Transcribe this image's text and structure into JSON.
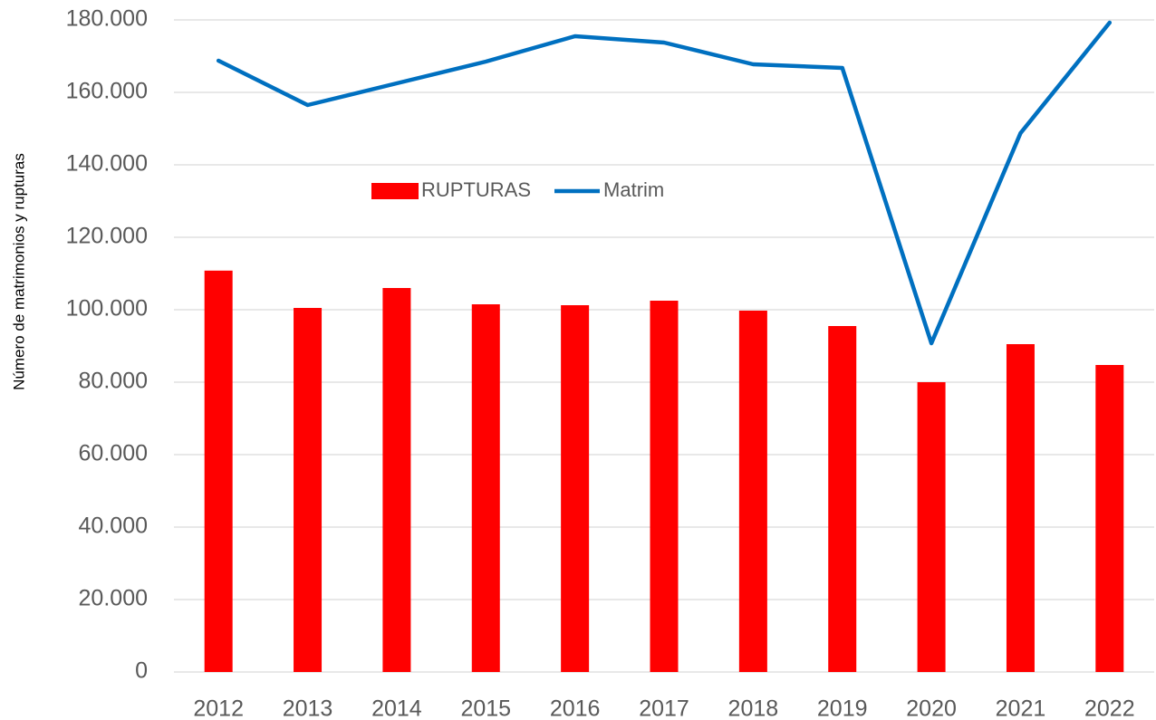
{
  "chart_data": {
    "type": "combo",
    "y_label": "Número de matrimonios y rupturas",
    "categories": [
      "2012",
      "2013",
      "2014",
      "2015",
      "2016",
      "2017",
      "2018",
      "2019",
      "2020",
      "2021",
      "2022"
    ],
    "series": [
      {
        "name": "RUPTURAS",
        "type": "bar",
        "color": "#ff0000",
        "values": [
          110800,
          100500,
          106000,
          101500,
          101250,
          102500,
          99750,
          95500,
          80000,
          90500,
          84750
        ]
      },
      {
        "name": "Matrim",
        "type": "line",
        "color": "#0070c0",
        "values": [
          168750,
          156500,
          162500,
          168500,
          175500,
          173750,
          167750,
          166750,
          90750,
          148750,
          179250
        ]
      }
    ],
    "ylim": [
      0,
      180000
    ],
    "yticks": [
      0,
      {
        "value": 20000,
        "label": "20.000"
      },
      {
        "value": 40000,
        "label": "40.000"
      },
      {
        "value": 60000,
        "label": "60.000"
      },
      {
        "value": 80000,
        "label": "80.000"
      },
      {
        "value": 100000,
        "label": "100.000"
      },
      {
        "value": 120000,
        "label": "120.000"
      },
      {
        "value": 140000,
        "label": "140.000"
      },
      {
        "value": 160000,
        "label": "160.000"
      },
      {
        "value": 180000,
        "label": "180.000"
      }
    ],
    "grid": true,
    "legend": "top-center"
  }
}
